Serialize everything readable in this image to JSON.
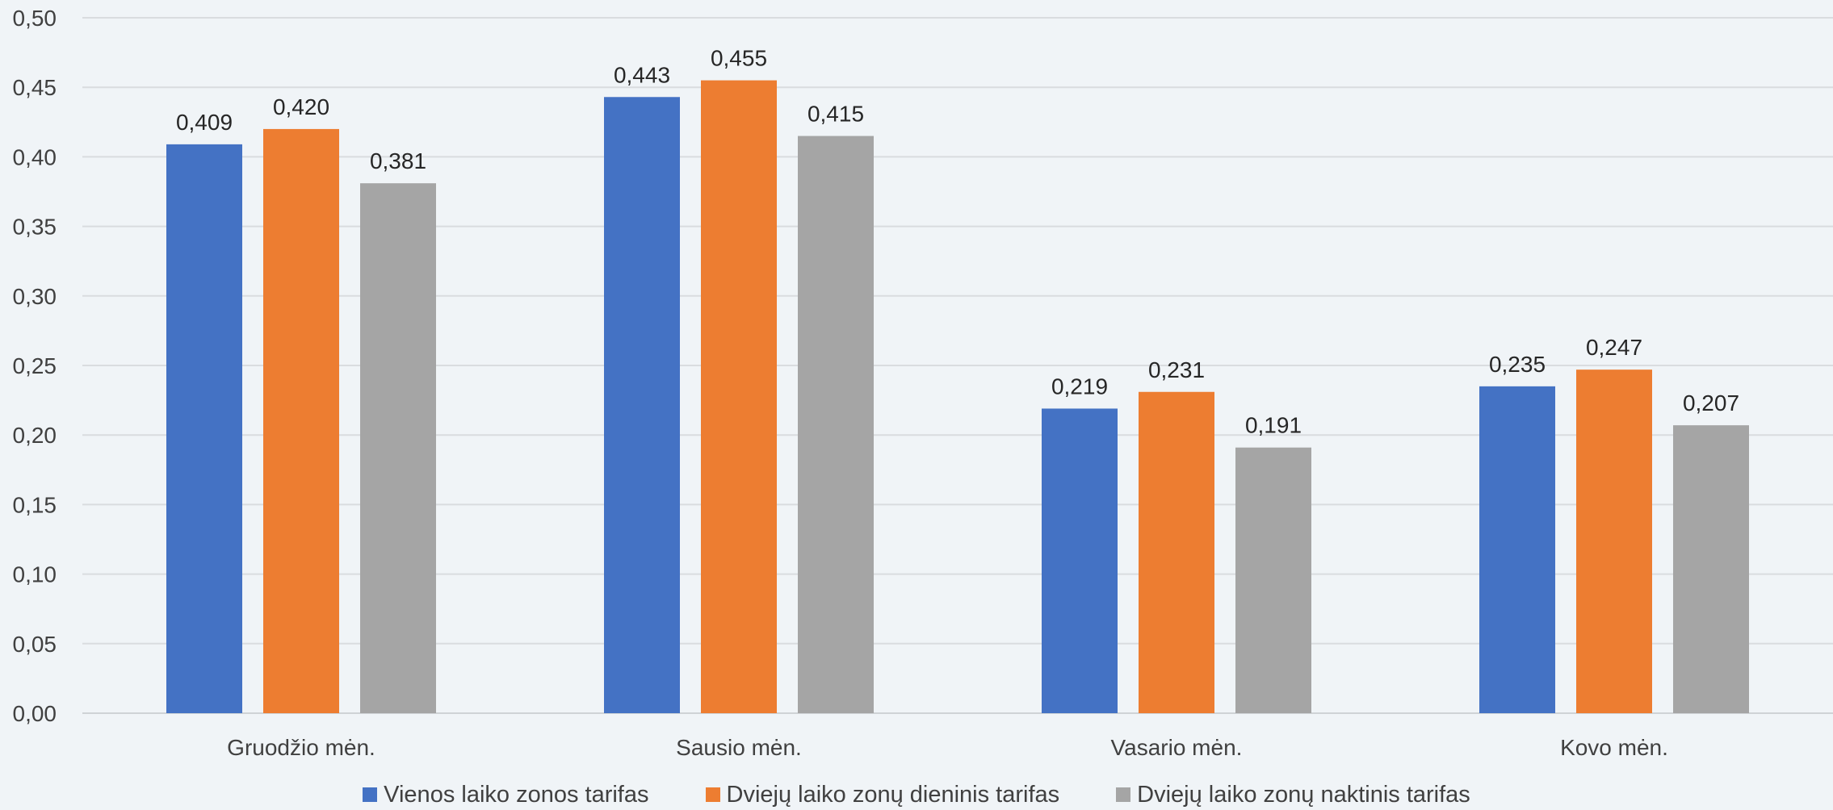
{
  "chart_data": {
    "type": "bar",
    "title": "",
    "xlabel": "",
    "ylabel": "",
    "ylim": [
      0,
      0.5
    ],
    "yticks": [
      "0,00",
      "0,05",
      "0,10",
      "0,15",
      "0,20",
      "0,25",
      "0,30",
      "0,35",
      "0,40",
      "0,45",
      "0,50"
    ],
    "categories": [
      "Gruodžio mėn.",
      "Sausio mėn.",
      "Vasario mėn.",
      "Kovo mėn."
    ],
    "series": [
      {
        "name": "Vienos laiko zonos tarifas",
        "color": "#4472c4",
        "values": [
          0.409,
          0.443,
          0.219,
          0.235
        ],
        "labels": [
          "0,409",
          "0,443",
          "0,219",
          "0,235"
        ]
      },
      {
        "name": "Dviejų laiko zonų dieninis tarifas",
        "color": "#ed7d31",
        "values": [
          0.42,
          0.455,
          0.231,
          0.247
        ],
        "labels": [
          "0,420",
          "0,455",
          "0,231",
          "0,247"
        ]
      },
      {
        "name": "Dviejų laiko zonų naktinis tarifas",
        "color": "#a5a5a5",
        "values": [
          0.381,
          0.415,
          0.191,
          0.207
        ],
        "labels": [
          "0,381",
          "0,415",
          "0,191",
          "0,207"
        ]
      }
    ],
    "grid": true,
    "legend": "bottom"
  }
}
